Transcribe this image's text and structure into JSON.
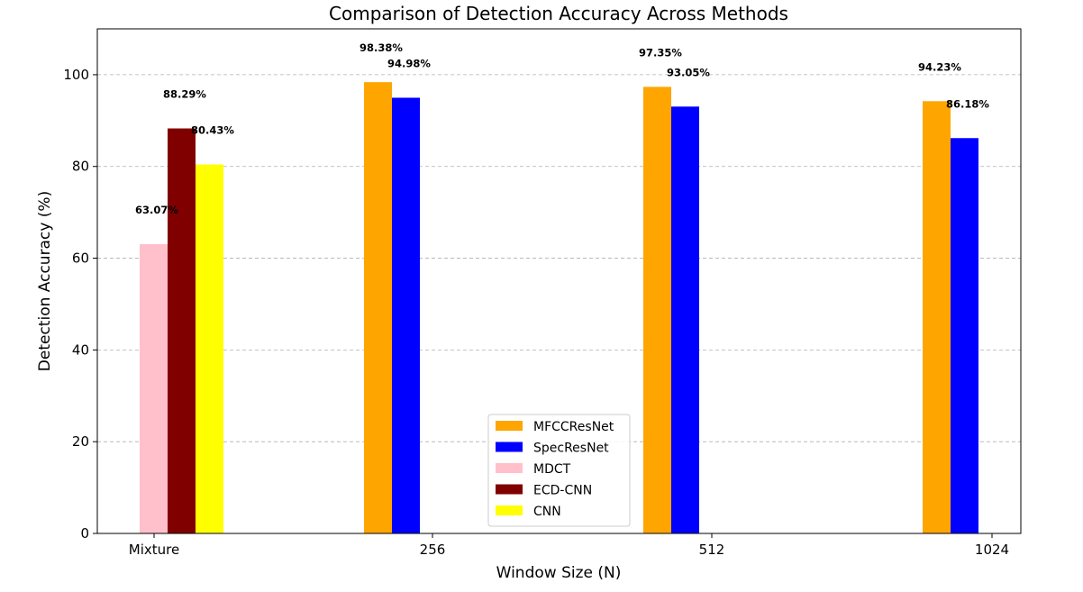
{
  "chart_data": {
    "type": "bar",
    "title": "Comparison of Detection Accuracy Across Methods",
    "xlabel": "Window Size (N)",
    "ylabel": "Detection Accuracy (%)",
    "ylim": [
      0,
      110
    ],
    "yticks": [
      0,
      20,
      40,
      60,
      80,
      100
    ],
    "grid": "y-dashed",
    "legend_position": "lower-center",
    "categories": [
      "Mixture",
      "256",
      "512",
      "1024"
    ],
    "series": [
      {
        "name": "MFCCResNet",
        "color": "#ffa500",
        "values": [
          null,
          98.38,
          97.35,
          94.23
        ]
      },
      {
        "name": "SpecResNet",
        "color": "#0000ff",
        "values": [
          null,
          94.98,
          93.05,
          86.18
        ]
      },
      {
        "name": "MDCT",
        "color": "#ffc0cb",
        "values": [
          63.07,
          null,
          null,
          null
        ]
      },
      {
        "name": "ECD-CNN",
        "color": "#800000",
        "values": [
          88.29,
          null,
          null,
          null
        ]
      },
      {
        "name": "CNN",
        "color": "#ffff00",
        "values": [
          80.43,
          null,
          null,
          null
        ]
      }
    ],
    "data_labels": [
      {
        "category": "Mixture",
        "series": "MDCT",
        "text": "63.07%"
      },
      {
        "category": "Mixture",
        "series": "ECD-CNN",
        "text": "88.29%"
      },
      {
        "category": "Mixture",
        "series": "CNN",
        "text": "80.43%"
      },
      {
        "category": "256",
        "series": "MFCCResNet",
        "text": "98.38%"
      },
      {
        "category": "256",
        "series": "SpecResNet",
        "text": "94.98%"
      },
      {
        "category": "512",
        "series": "MFCCResNet",
        "text": "97.35%"
      },
      {
        "category": "512",
        "series": "SpecResNet",
        "text": "93.05%"
      },
      {
        "category": "1024",
        "series": "MFCCResNet",
        "text": "94.23%"
      },
      {
        "category": "1024",
        "series": "SpecResNet",
        "text": "86.18%"
      }
    ]
  }
}
